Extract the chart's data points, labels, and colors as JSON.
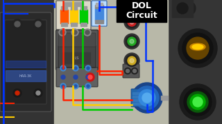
{
  "title_line1": "DOL",
  "title_line2": "Circuit",
  "title_bg": "#000000",
  "title_fg": "#ffffff",
  "panel_bg": "#b8b8a8",
  "bg_dark": "#404040",
  "bg_left_color": "#2a2a2a",
  "bg_right_color": "#383838",
  "wire_red": "#ff2200",
  "wire_yellow": "#ffcc00",
  "wire_green": "#00cc00",
  "wire_blue": "#0033ff",
  "mcb3_body": "#e0d8c8",
  "mcb3_pole_colors": [
    "#ff4400",
    "#ffcc00",
    "#00bb00"
  ],
  "mcb1_body": "#aaccee",
  "mcb1_pole_color": "#3366cc",
  "contactor_body": "#555555",
  "relay_body": "#666666",
  "button_colors": [
    "#cc2222",
    "#22aa22",
    "#ccaa22"
  ],
  "motor_color1": "#1a55aa",
  "motor_color2": "#2277cc",
  "motor_color3": "#55aaee"
}
